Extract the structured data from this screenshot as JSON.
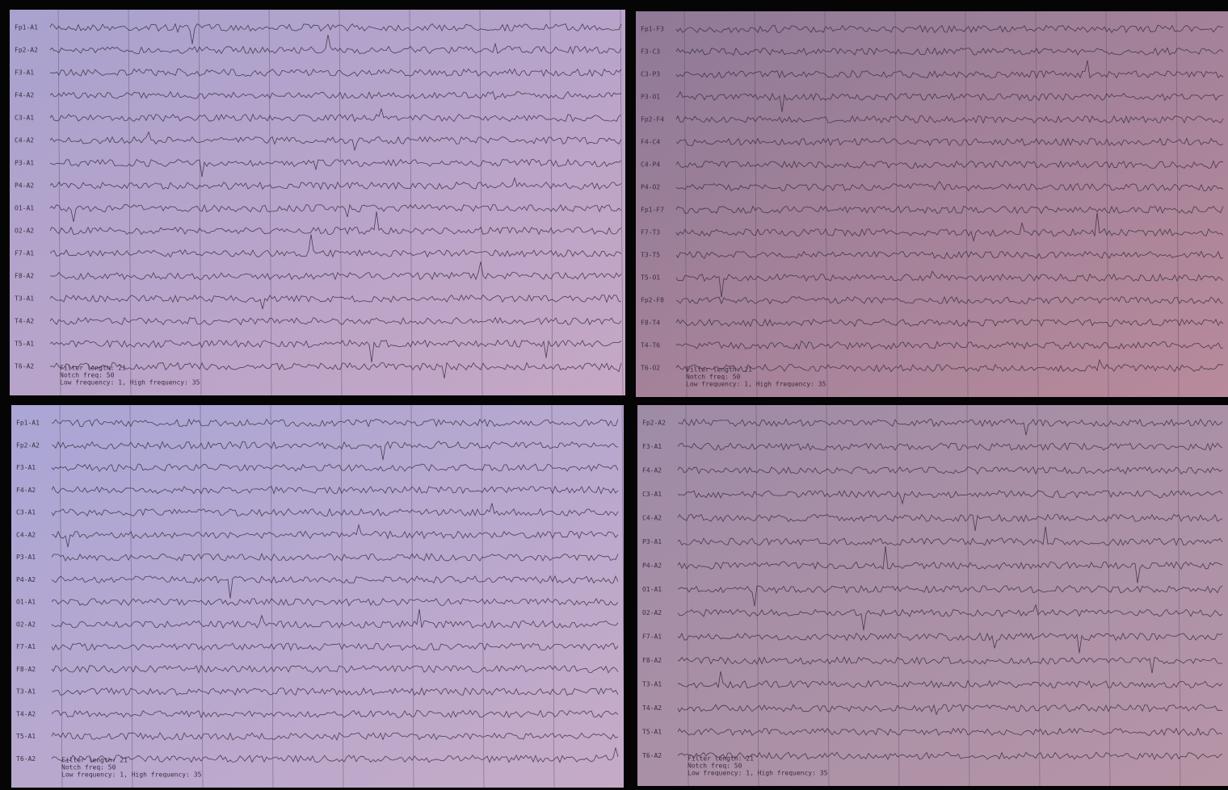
{
  "panels": [
    {
      "channels": [
        "Fp1-A1",
        "Fp2-A2",
        "F3-A1",
        "F4-A2",
        "C3-A1",
        "C4-A2",
        "P3-A1",
        "P4-A2",
        "O1-A1",
        "O2-A2",
        "F7-A1",
        "F8-A2",
        "T3-A1",
        "T4-A2",
        "T5-A1",
        "T6-A2"
      ],
      "footer": [
        "Filter length: 21",
        "Notch freq: 50",
        "Low frequency: 1, High frequency: 35"
      ]
    },
    {
      "channels": [
        "Fp1-F3",
        "F3-C3",
        "C3-P3",
        "P3-O1",
        "Fp2-F4",
        "F4-C4",
        "C4-P4",
        "P4-O2",
        "Fp1-F7",
        "F7-T3",
        "T3-T5",
        "T5-O1",
        "Fp2-F8",
        "F8-T4",
        "T4-T6",
        "T6-O2"
      ],
      "footer": [
        "Filter length: 21",
        "Notch freq: 50",
        "Low frequency: 1, High frequency: 35"
      ]
    },
    {
      "channels": [
        "Fp1-A1",
        "Fp2-A2",
        "F3-A1",
        "F4-A2",
        "C3-A1",
        "C4-A2",
        "P3-A1",
        "P4-A2",
        "O1-A1",
        "O2-A2",
        "F7-A1",
        "F8-A2",
        "T3-A1",
        "T4-A2",
        "T5-A1",
        "T6-A2"
      ],
      "footer": [
        "Filter length: 21",
        "Notch freq: 50",
        "Low frequency: 1, High frequency: 35"
      ]
    },
    {
      "channels": [
        "Fp2-A2",
        "F3-A1",
        "F4-A2",
        "C3-A1",
        "C4-A2",
        "P3-A1",
        "P4-A2",
        "O1-A1",
        "O2-A2",
        "F7-A1",
        "F8-A2",
        "T3-A1",
        "T4-A2",
        "T5-A1",
        "T6-A2"
      ],
      "footer": [
        "Filter length: 21",
        "Notch freq: 50",
        "Low frequency: 1, High frequency: 35"
      ]
    }
  ]
}
